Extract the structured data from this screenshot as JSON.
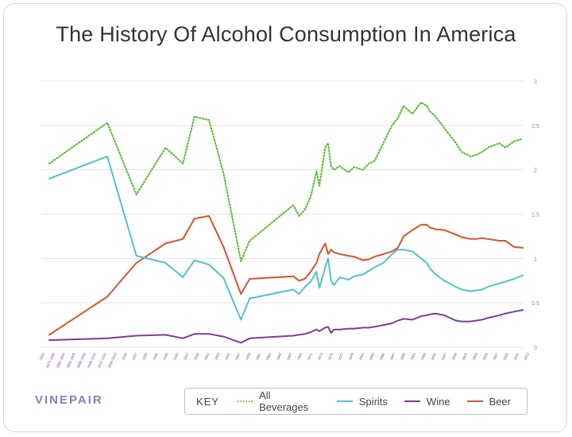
{
  "title": "The History Of Alcohol Consumption In America",
  "brand": "VINEPAIR",
  "legend": {
    "key_label": "KEY",
    "items": [
      {
        "label": "All Beverages",
        "color": "#5cbf3c",
        "style": "dotted"
      },
      {
        "label": "Spirits",
        "color": "#52c2c9",
        "style": "solid"
      },
      {
        "label": "Wine",
        "color": "#7b3d9c",
        "style": "solid"
      },
      {
        "label": "Beer",
        "color": "#d9532b",
        "style": "solid"
      }
    ]
  },
  "chart_data": {
    "type": "line",
    "title": "The History Of Alcohol Consumption In America",
    "xlabel": "",
    "ylabel": "",
    "ylim": [
      0,
      3
    ],
    "yticks": [
      "0",
      "0.5",
      "1",
      "1.5",
      "2",
      "2.5",
      "3"
    ],
    "y_axis_position": "right",
    "grid": true,
    "legend_position": "bottom",
    "x": [
      1850,
      1870,
      1880,
      1890,
      1896,
      1900,
      1905,
      1910,
      1916,
      1919,
      1934,
      1936,
      1938,
      1940,
      1942,
      1943,
      1945,
      1946,
      1947,
      1948,
      1950,
      1953,
      1955,
      1958,
      1960,
      1962,
      1965,
      1968,
      1970,
      1972,
      1975,
      1978,
      1980,
      1981,
      1983,
      1986,
      1990,
      1992,
      1995,
      1997,
      1999,
      2001,
      2005,
      2007,
      2010,
      2013
    ],
    "x_tick_labels": [
      "1850",
      "1871-1880",
      "1881-1890",
      "1891-1895",
      "1896-1900",
      "1906-1910",
      "1911-1915",
      "1916-1919",
      "1934",
      "1937",
      "1939",
      "1941",
      "1943",
      "1945",
      "1947",
      "1949",
      "1951",
      "1953",
      "1955",
      "1957",
      "1959",
      "1961",
      "1963",
      "1965",
      "1967",
      "1969",
      "1971",
      "1973",
      "1975",
      "1977",
      "1979",
      "1981",
      "1983",
      "1985",
      "1987",
      "1989",
      "1991",
      "1993",
      "1995",
      "1997",
      "1999",
      "2001",
      "2003",
      "2005",
      "2007",
      "2009",
      "2011",
      "2013"
    ],
    "series": [
      {
        "name": "All Beverages",
        "color": "#5cbf3c",
        "style": "dotted",
        "values": [
          2.07,
          2.53,
          1.72,
          2.25,
          2.07,
          2.6,
          2.56,
          1.96,
          0.97,
          1.2,
          1.6,
          1.48,
          1.55,
          1.7,
          1.98,
          1.82,
          2.25,
          2.3,
          2.04,
          2.0,
          2.04,
          1.97,
          2.03,
          2.0,
          2.07,
          2.1,
          2.3,
          2.5,
          2.58,
          2.72,
          2.63,
          2.76,
          2.72,
          2.66,
          2.6,
          2.47,
          2.3,
          2.2,
          2.15,
          2.17,
          2.2,
          2.25,
          2.3,
          2.25,
          2.32,
          2.35
        ]
      },
      {
        "name": "Spirits",
        "color": "#52c2c9",
        "style": "solid",
        "values": [
          1.9,
          2.15,
          1.03,
          0.95,
          0.79,
          0.98,
          0.93,
          0.78,
          0.31,
          0.55,
          0.65,
          0.6,
          0.68,
          0.74,
          0.85,
          0.67,
          0.9,
          1.0,
          0.75,
          0.7,
          0.79,
          0.76,
          0.8,
          0.82,
          0.86,
          0.9,
          0.95,
          1.05,
          1.1,
          1.1,
          1.08,
          1.0,
          0.95,
          0.89,
          0.82,
          0.75,
          0.68,
          0.65,
          0.63,
          0.64,
          0.65,
          0.68,
          0.72,
          0.74,
          0.77,
          0.81
        ]
      },
      {
        "name": "Wine",
        "color": "#7b3d9c",
        "style": "solid",
        "values": [
          0.08,
          0.1,
          0.13,
          0.14,
          0.1,
          0.15,
          0.15,
          0.12,
          0.05,
          0.1,
          0.13,
          0.14,
          0.15,
          0.17,
          0.2,
          0.18,
          0.22,
          0.23,
          0.16,
          0.2,
          0.2,
          0.21,
          0.21,
          0.22,
          0.22,
          0.23,
          0.25,
          0.27,
          0.3,
          0.32,
          0.31,
          0.35,
          0.36,
          0.37,
          0.38,
          0.36,
          0.3,
          0.29,
          0.29,
          0.3,
          0.31,
          0.33,
          0.36,
          0.38,
          0.4,
          0.42
        ]
      },
      {
        "name": "Beer",
        "color": "#d9532b",
        "style": "solid",
        "values": [
          0.14,
          0.57,
          0.95,
          1.17,
          1.22,
          1.45,
          1.48,
          1.13,
          0.6,
          0.77,
          0.8,
          0.75,
          0.77,
          0.85,
          0.95,
          1.05,
          1.17,
          1.05,
          1.1,
          1.07,
          1.05,
          1.03,
          1.02,
          0.98,
          0.99,
          1.02,
          1.05,
          1.08,
          1.12,
          1.25,
          1.32,
          1.38,
          1.38,
          1.35,
          1.33,
          1.32,
          1.27,
          1.24,
          1.22,
          1.22,
          1.23,
          1.22,
          1.2,
          1.2,
          1.13,
          1.12
        ]
      }
    ]
  }
}
